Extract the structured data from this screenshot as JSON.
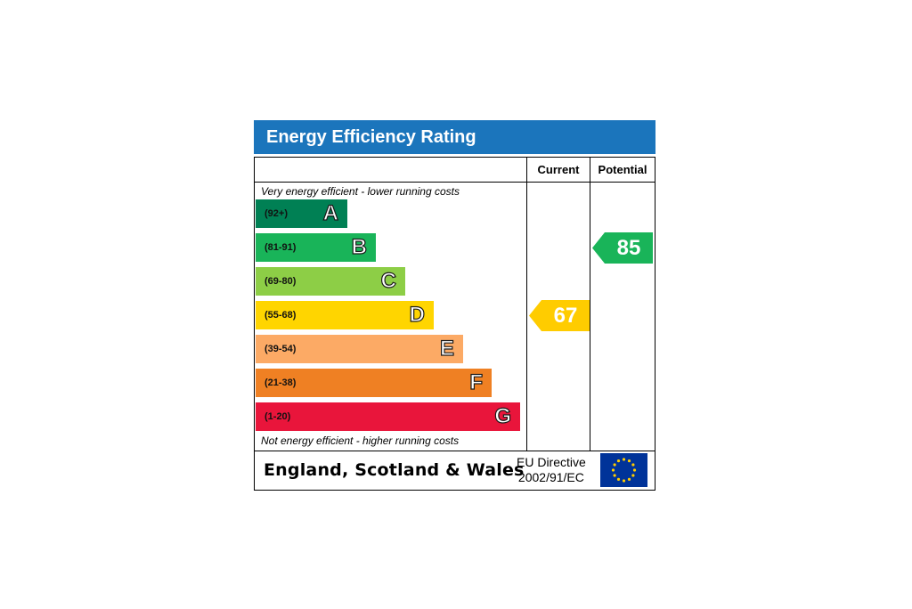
{
  "title": "Energy Efficiency Rating",
  "columns": {
    "current": "Current",
    "potential": "Potential"
  },
  "notes": {
    "top": "Very energy efficient - lower running costs",
    "bottom": "Not energy efficient - higher running costs"
  },
  "bands": [
    {
      "letter": "A",
      "range": "(92+)",
      "color": "#008054"
    },
    {
      "letter": "B",
      "range": "(81-91)",
      "color": "#19b459"
    },
    {
      "letter": "C",
      "range": "(69-80)",
      "color": "#8dce46"
    },
    {
      "letter": "D",
      "range": "(55-68)",
      "color": "#ffd500"
    },
    {
      "letter": "E",
      "range": "(39-54)",
      "color": "#fcaa65"
    },
    {
      "letter": "F",
      "range": "(21-38)",
      "color": "#ef8023"
    },
    {
      "letter": "G",
      "range": "(1-20)",
      "color": "#e9153b"
    }
  ],
  "ratings": {
    "current": {
      "value": "67",
      "band": "D",
      "color": "#ffcc00"
    },
    "potential": {
      "value": "85",
      "band": "B",
      "color": "#19b459"
    }
  },
  "footer": {
    "region": "England, Scotland & Wales",
    "directive_line1": "EU Directive",
    "directive_line2": "2002/91/EC"
  },
  "colors": {
    "title_bar": "#1b75bc",
    "flag": "#003399",
    "flag_stars": "#ffcc00"
  }
}
